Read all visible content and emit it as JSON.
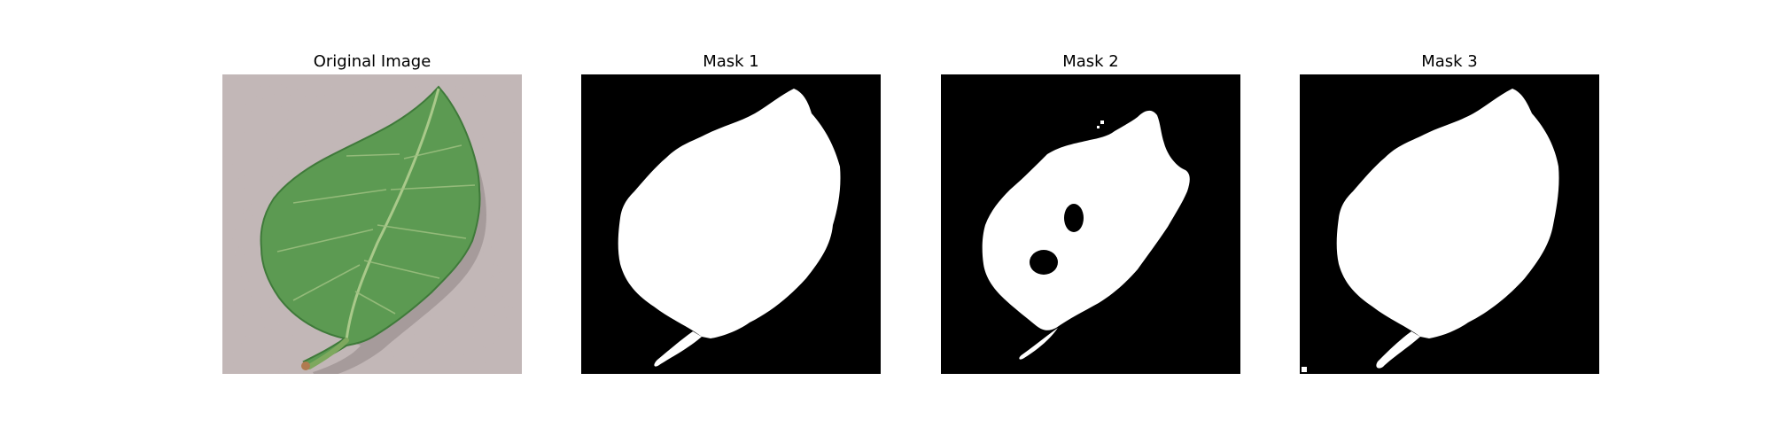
{
  "figure": {
    "panels": [
      {
        "title": "Original Image",
        "image": "leaf-photo"
      },
      {
        "title": "Mask 1",
        "image": "binary-mask"
      },
      {
        "title": "Mask 2",
        "image": "binary-mask"
      },
      {
        "title": "Mask 3",
        "image": "binary-mask"
      }
    ]
  },
  "colors": {
    "background": "#c2b6b6",
    "leaf": "#5c9a52",
    "leaf_dark": "#3f7a3a",
    "vein": "#a9c98a",
    "mask_background": "#000000",
    "mask_foreground": "#ffffff"
  }
}
